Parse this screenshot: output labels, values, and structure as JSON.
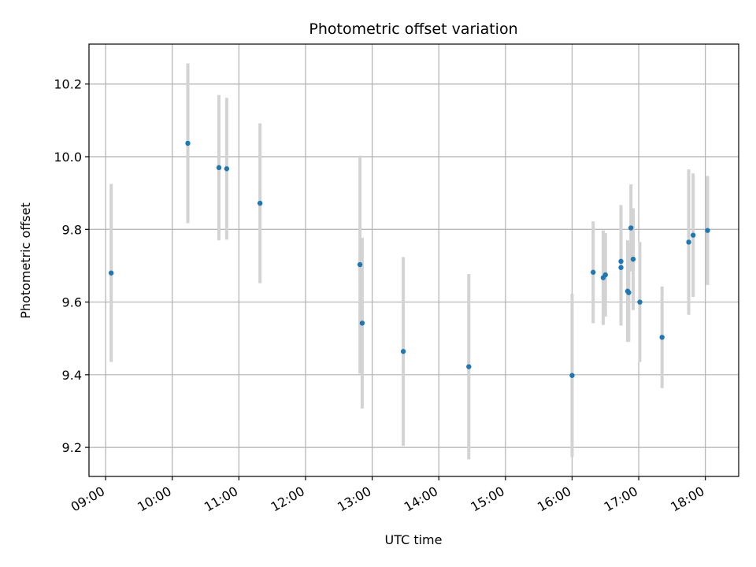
{
  "chart_data": {
    "type": "scatter",
    "title": "Photometric offset variation",
    "xlabel": "UTC time",
    "ylabel": "Photometric offset",
    "x_unit": "UTC time of day",
    "xlim": [
      "08:45",
      "18:30"
    ],
    "ylim": [
      9.12,
      10.31
    ],
    "x_ticks": [
      "09:00",
      "10:00",
      "11:00",
      "12:00",
      "13:00",
      "14:00",
      "15:00",
      "16:00",
      "17:00",
      "18:00"
    ],
    "y_ticks": [
      9.2,
      9.4,
      9.6,
      9.8,
      10.0,
      10.2
    ],
    "y_tick_labels": [
      "9.2",
      "9.4",
      "9.6",
      "9.8",
      "10.0",
      "10.2"
    ],
    "grid": true,
    "point_color": "#1f77b4",
    "errorbar_color": "#d3d3d3",
    "points": [
      {
        "x": "09:05",
        "y": 9.68,
        "err": 0.245
      },
      {
        "x": "10:14",
        "y": 10.037,
        "err": 0.22
      },
      {
        "x": "10:42",
        "y": 9.97,
        "err": 0.2
      },
      {
        "x": "10:49",
        "y": 9.967,
        "err": 0.195
      },
      {
        "x": "11:19",
        "y": 9.872,
        "err": 0.22
      },
      {
        "x": "12:49",
        "y": 9.703,
        "err": 0.3
      },
      {
        "x": "12:51",
        "y": 9.542,
        "err": 0.235
      },
      {
        "x": "13:28",
        "y": 9.464,
        "err": 0.26
      },
      {
        "x": "14:27",
        "y": 9.422,
        "err": 0.255
      },
      {
        "x": "16:00",
        "y": 9.398,
        "err": 0.225
      },
      {
        "x": "16:19",
        "y": 9.682,
        "err": 0.14
      },
      {
        "x": "16:28",
        "y": 9.667,
        "err": 0.13
      },
      {
        "x": "16:30",
        "y": 9.675,
        "err": 0.115
      },
      {
        "x": "16:44",
        "y": 9.695,
        "err": 0.16
      },
      {
        "x": "16:44",
        "y": 9.712,
        "err": 0.155
      },
      {
        "x": "16:50",
        "y": 9.63,
        "err": 0.14
      },
      {
        "x": "16:51",
        "y": 9.626,
        "err": 0.135
      },
      {
        "x": "16:53",
        "y": 9.804,
        "err": 0.12
      },
      {
        "x": "16:55",
        "y": 9.718,
        "err": 0.14
      },
      {
        "x": "17:01",
        "y": 9.6,
        "err": 0.165
      },
      {
        "x": "17:21",
        "y": 9.503,
        "err": 0.14
      },
      {
        "x": "17:45",
        "y": 9.765,
        "err": 0.2
      },
      {
        "x": "17:49",
        "y": 9.784,
        "err": 0.17
      },
      {
        "x": "18:02",
        "y": 9.797,
        "err": 0.15
      }
    ]
  }
}
